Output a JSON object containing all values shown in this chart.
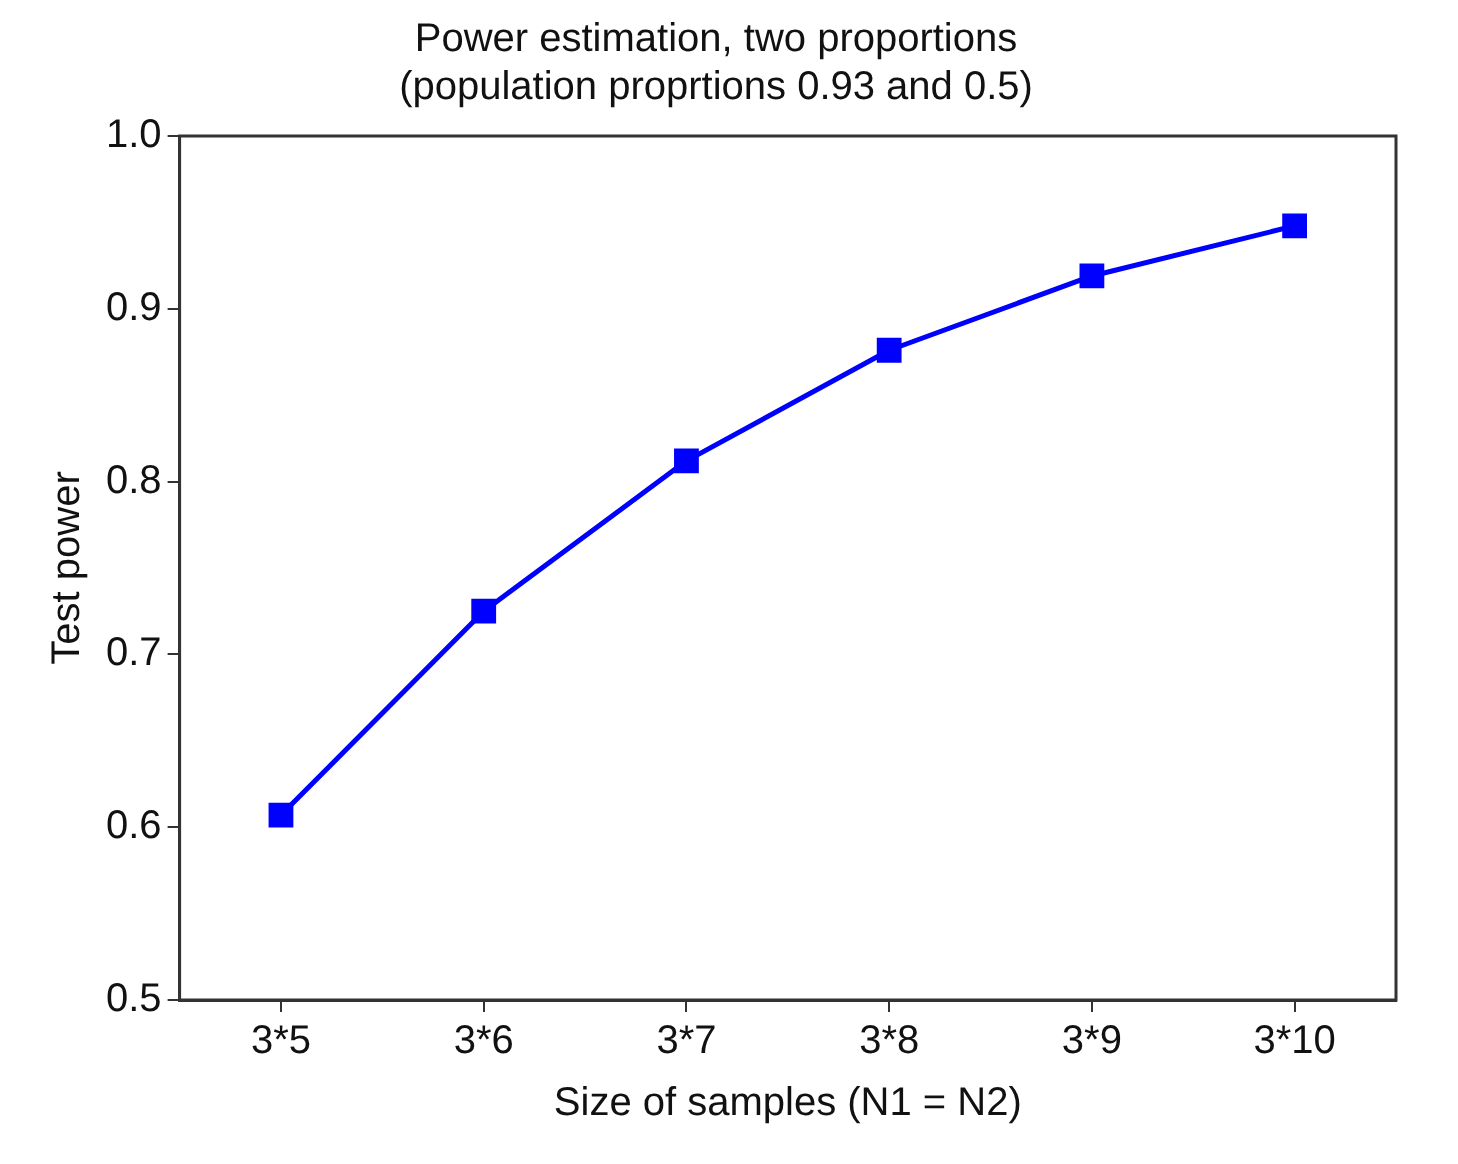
{
  "chart_data": {
    "type": "line",
    "title": [
      "Power estimation, two proportions",
      "(population proprtions 0.93 and 0.5)"
    ],
    "xlabel": "Size of samples (N1 = N2)",
    "ylabel": "Test power",
    "categories": [
      "3*5",
      "3*6",
      "3*7",
      "3*8",
      "3*9",
      "3*10"
    ],
    "series": [
      {
        "color": "#0000ff",
        "values": [
          0.607,
          0.725,
          0.812,
          0.876,
          0.919,
          0.948
        ]
      }
    ],
    "ylim": [
      0.5,
      1.0
    ],
    "yticks": [
      {
        "value": 0.5,
        "label": "0.5"
      },
      {
        "value": 0.6,
        "label": "0.6"
      },
      {
        "value": 0.7,
        "label": "0.7"
      },
      {
        "value": 0.8,
        "label": "0.8"
      },
      {
        "value": 0.9,
        "label": "0.9"
      },
      {
        "value": 1.0,
        "label": "1.0"
      }
    ],
    "grid": false,
    "legend": false,
    "marker": "square",
    "line_style": "solid"
  }
}
